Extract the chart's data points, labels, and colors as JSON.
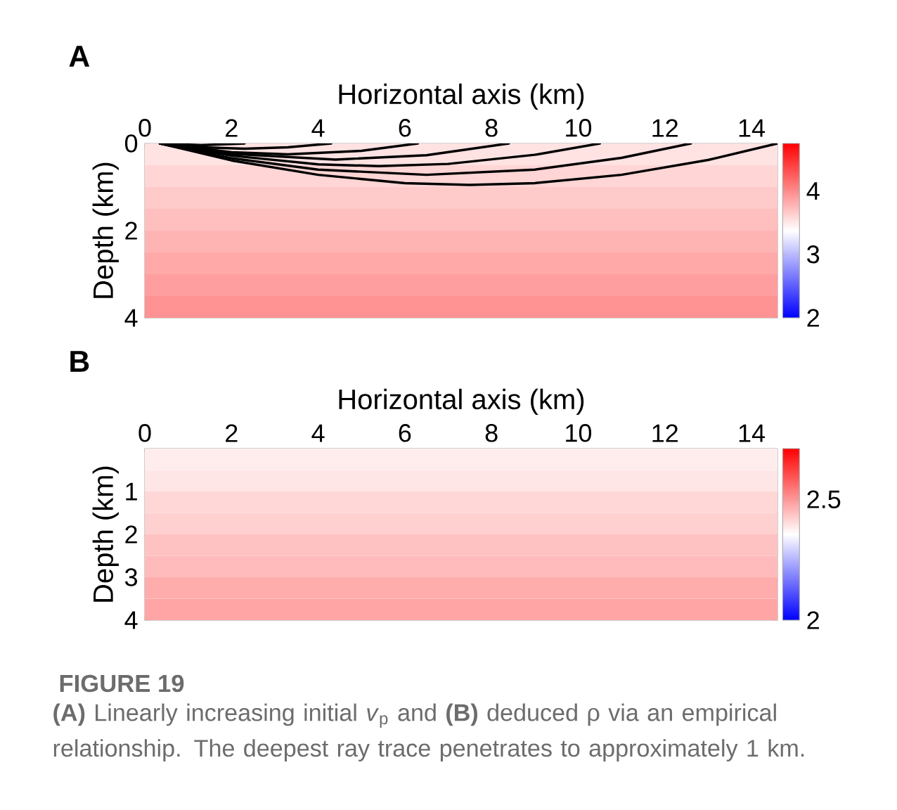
{
  "chart_data": [
    {
      "type": "heatmap",
      "title": "A",
      "xlabel": "Horizontal axis (km)",
      "ylabel": "Depth (km)",
      "xlim": [
        0,
        14.6
      ],
      "ylim": [
        4,
        0
      ],
      "xticks": [
        0,
        2,
        4,
        6,
        8,
        10,
        12,
        14
      ],
      "yticks": [
        0,
        2,
        4
      ],
      "cells": [
        [
          3.53
        ],
        [
          3.6
        ],
        [
          3.66
        ],
        [
          3.72
        ],
        [
          3.78
        ],
        [
          3.84
        ],
        [
          3.9
        ],
        [
          3.96
        ]
      ],
      "clim": [
        2,
        4.75
      ],
      "cticks": [
        2,
        3,
        4
      ],
      "series": [
        {
          "type": "line",
          "color": "#000000",
          "x": [
            0.35,
            1.3,
            2.3
          ],
          "values": [
            0,
            0.04,
            0
          ]
        },
        {
          "type": "line",
          "color": "#000000",
          "x": [
            0.35,
            1.3,
            2.3,
            3.3,
            4.3
          ],
          "values": [
            0,
            0.09,
            0.12,
            0.09,
            0
          ]
        },
        {
          "type": "line",
          "color": "#000000",
          "x": [
            0.35,
            2,
            3.3,
            5,
            6.3
          ],
          "values": [
            0,
            0.2,
            0.25,
            0.17,
            0
          ]
        },
        {
          "type": "line",
          "color": "#000000",
          "x": [
            0.35,
            2,
            4.4,
            6.5,
            8.4
          ],
          "values": [
            0,
            0.24,
            0.37,
            0.27,
            0
          ]
        },
        {
          "type": "line",
          "color": "#000000",
          "x": [
            0.35,
            2,
            4,
            5.4,
            7,
            9,
            10.5
          ],
          "values": [
            0,
            0.28,
            0.48,
            0.52,
            0.47,
            0.26,
            0
          ]
        },
        {
          "type": "line",
          "color": "#000000",
          "x": [
            0.35,
            2,
            4,
            6.5,
            9,
            11,
            12.6
          ],
          "values": [
            0,
            0.34,
            0.6,
            0.72,
            0.6,
            0.33,
            0
          ]
        },
        {
          "type": "line",
          "color": "#000000",
          "x": [
            0.35,
            2,
            4,
            6,
            7.5,
            9,
            11,
            13,
            14.6
          ],
          "values": [
            0,
            0.39,
            0.72,
            0.91,
            0.95,
            0.91,
            0.72,
            0.38,
            0
          ]
        }
      ]
    },
    {
      "type": "heatmap",
      "title": "B",
      "xlabel": "Horizontal axis (km)",
      "ylabel": "Depth (km)",
      "xlim": [
        0,
        14.6
      ],
      "ylim": [
        4,
        0
      ],
      "xticks": [
        0,
        2,
        4,
        6,
        8,
        10,
        12,
        14
      ],
      "yticks": [
        1,
        2,
        3,
        4
      ],
      "cells": [
        [
          2.38
        ],
        [
          2.39
        ],
        [
          2.41
        ],
        [
          2.42
        ],
        [
          2.44
        ],
        [
          2.45
        ],
        [
          2.47
        ],
        [
          2.48
        ]
      ],
      "clim": [
        2,
        2.71
      ],
      "cticks": [
        2,
        2.5
      ],
      "annotations": [
        "FIGURE 19",
        "**(A)** Linearly increasing initial *v*$_{p}$ and **(B)** deduced ρ via an empirical relationship. The deepest ray trace penetrates to approximately 1 km."
      ]
    }
  ]
}
